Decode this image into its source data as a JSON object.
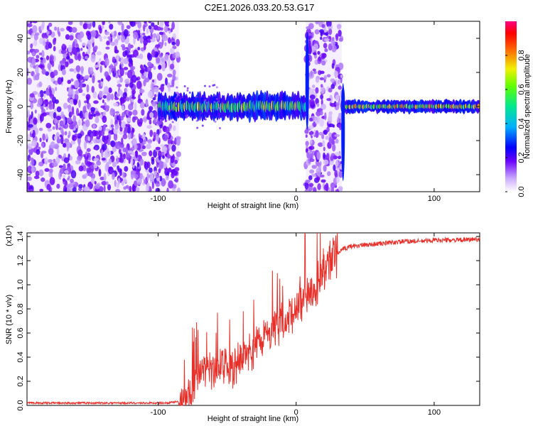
{
  "title": "C2E1.2026.033.20.53.G17",
  "chart_data": [
    {
      "type": "heatmap",
      "name": "spectrogram",
      "xlabel": "Height of straight line (km)",
      "ylabel": "Frequency (Hz)",
      "xlim": [
        -195,
        133
      ],
      "ylim": [
        -50,
        50
      ],
      "xticks": [
        -100,
        0,
        100
      ],
      "yticks": [
        -40,
        -20,
        0,
        20,
        40
      ],
      "colorbar": {
        "label": "Normalized spectral amplitude",
        "range": [
          0,
          1
        ],
        "ticks": [
          0.0,
          0.2,
          0.4,
          0.6,
          0.8
        ]
      },
      "regions": [
        {
          "name": "noise-region-1",
          "x": [
            -195,
            -85
          ],
          "y": [
            -50,
            50
          ],
          "amplitude": 0.15
        },
        {
          "name": "noise-region-2",
          "x": [
            7,
            33
          ],
          "y": [
            -50,
            50
          ],
          "amplitude": 0.15
        },
        {
          "name": "signal-band-1",
          "x": [
            -100,
            7
          ],
          "y": [
            -8,
            8
          ],
          "amplitude": 0.5
        },
        {
          "name": "signal-band-2",
          "x": [
            33,
            133
          ],
          "y": [
            -4,
            4
          ],
          "amplitude": 0.6
        }
      ]
    },
    {
      "type": "line",
      "name": "snr",
      "xlabel": "Height of straight line (km)",
      "ylabel": "SNR (10 * v/v)",
      "multiplier": "(x10⁴)",
      "xlim": [
        -195,
        133
      ],
      "ylim": [
        0,
        1.43
      ],
      "xticks": [
        -100,
        0,
        100
      ],
      "yticks": [
        0.0,
        0.2,
        0.4,
        0.6,
        0.8,
        1.0,
        1.2,
        1.4
      ],
      "color": "#e8302a",
      "series": [
        {
          "name": "SNR",
          "x": [
            -195,
            -150,
            -120,
            -95,
            -85,
            -80,
            -75,
            -70,
            -65,
            -60,
            -55,
            -50,
            -45,
            -40,
            -35,
            -30,
            -25,
            -20,
            -15,
            -10,
            -5,
            0,
            5,
            10,
            15,
            20,
            25,
            30,
            35,
            40,
            50,
            60,
            70,
            80,
            90,
            100,
            110,
            120,
            133
          ],
          "y": [
            0.02,
            0.02,
            0.02,
            0.02,
            0.03,
            0.05,
            0.15,
            0.3,
            0.35,
            0.3,
            0.3,
            0.35,
            0.3,
            0.4,
            0.45,
            0.5,
            0.55,
            0.6,
            0.65,
            0.7,
            0.75,
            0.85,
            0.9,
            0.95,
            1.0,
            1.1,
            1.2,
            1.26,
            1.3,
            1.32,
            1.33,
            1.34,
            1.35,
            1.36,
            1.36,
            1.37,
            1.37,
            1.37,
            1.38
          ]
        }
      ]
    }
  ]
}
